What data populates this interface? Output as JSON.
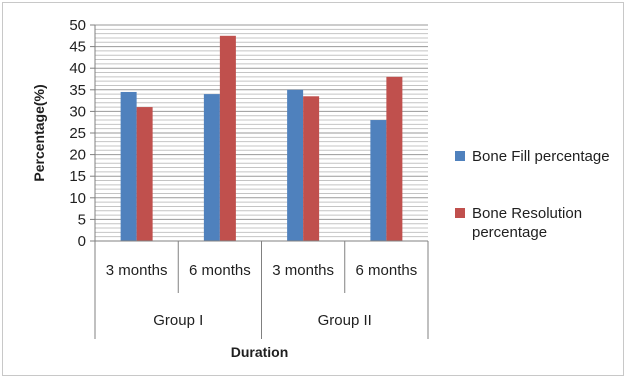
{
  "chart_data": {
    "type": "bar",
    "groups": [
      "Group I",
      "Group II"
    ],
    "categories": [
      "3 months",
      "6 months",
      "3 months",
      "6 months"
    ],
    "series": [
      {
        "name": "Bone Fill percentage",
        "color": "#4f81bd",
        "values": [
          34.5,
          34.0,
          35.0,
          28.0
        ]
      },
      {
        "name": "Bone Resolution percentage",
        "color": "#c0504d",
        "values": [
          31.0,
          47.5,
          33.5,
          38.0
        ]
      }
    ],
    "xlabel": "Duration",
    "ylabel": "Percentage(%)",
    "ylim": [
      0,
      50
    ],
    "yticks": [
      0,
      5,
      10,
      15,
      20,
      25,
      30,
      35,
      40,
      45,
      50
    ],
    "grid": true,
    "legend": "right",
    "legend_labels": [
      [
        "Bone Fill percentage"
      ],
      [
        "Bone Resolution",
        "percentage"
      ]
    ]
  }
}
